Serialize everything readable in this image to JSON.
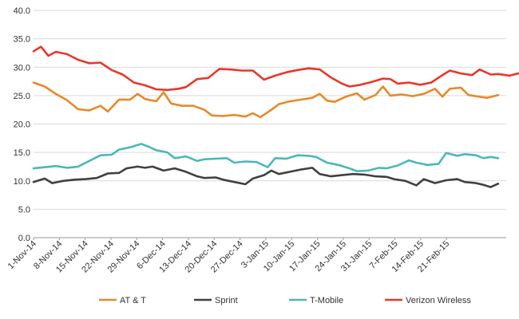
{
  "chart_data": {
    "type": "line",
    "title": "",
    "xlabel": "",
    "ylabel": "",
    "ylim": [
      0,
      40
    ],
    "y_ticks": [
      "0.0",
      "5.0",
      "10.0",
      "15.0",
      "20.0",
      "25.0",
      "30.0",
      "35.0",
      "40.0"
    ],
    "grid": "horizontal",
    "legend_position": "bottom",
    "x_start": "2014-11-01",
    "x_end": "2015-02-24",
    "x_tick_labels": [
      "1-Nov-14",
      "8-Nov-14",
      "15-Nov-14",
      "22-Nov-14",
      "29-Nov-14",
      "6-Dec-14",
      "13-Dec-14",
      "20-Dec-14",
      "27-Dec-14",
      "3-Jan-15",
      "10-Jan-15",
      "17-Jan-15",
      "24-Jan-15",
      "31-Jan-15",
      "7-Feb-15",
      "14-Feb-15",
      "21-Feb-15"
    ],
    "series": [
      {
        "name": "AT & T",
        "color": "#e8892a",
        "points": [
          [
            "2014-11-01",
            27.3
          ],
          [
            "2014-11-04",
            26.6
          ],
          [
            "2014-11-07",
            25.3
          ],
          [
            "2014-11-10",
            24.2
          ],
          [
            "2014-11-13",
            22.6
          ],
          [
            "2014-11-16",
            22.4
          ],
          [
            "2014-11-19",
            23.2
          ],
          [
            "2014-11-21",
            22.2
          ],
          [
            "2014-11-24",
            24.3
          ],
          [
            "2014-11-27",
            24.3
          ],
          [
            "2014-11-29",
            25.3
          ],
          [
            "2014-12-01",
            24.4
          ],
          [
            "2014-12-04",
            24.0
          ],
          [
            "2014-12-06",
            25.6
          ],
          [
            "2014-12-08",
            23.6
          ],
          [
            "2014-12-11",
            23.2
          ],
          [
            "2014-12-14",
            23.2
          ],
          [
            "2014-12-17",
            22.5
          ],
          [
            "2014-12-19",
            21.5
          ],
          [
            "2014-12-22",
            21.4
          ],
          [
            "2014-12-25",
            21.6
          ],
          [
            "2014-12-28",
            21.3
          ],
          [
            "2014-12-30",
            21.9
          ],
          [
            "2015-01-01",
            21.2
          ],
          [
            "2015-01-04",
            22.5
          ],
          [
            "2015-01-06",
            23.5
          ],
          [
            "2015-01-09",
            24.0
          ],
          [
            "2015-01-12",
            24.3
          ],
          [
            "2015-01-15",
            24.6
          ],
          [
            "2015-01-17",
            25.3
          ],
          [
            "2015-01-19",
            24.1
          ],
          [
            "2015-01-21",
            23.9
          ],
          [
            "2015-01-24",
            24.8
          ],
          [
            "2015-01-27",
            25.4
          ],
          [
            "2015-01-29",
            24.3
          ],
          [
            "2015-02-01",
            25.1
          ],
          [
            "2015-02-03",
            26.6
          ],
          [
            "2015-02-05",
            25.0
          ],
          [
            "2015-02-08",
            25.2
          ],
          [
            "2015-02-11",
            24.9
          ],
          [
            "2015-02-14",
            25.3
          ],
          [
            "2015-02-17",
            26.2
          ],
          [
            "2015-02-19",
            24.8
          ],
          [
            "2015-02-21",
            26.2
          ],
          [
            "2015-02-24",
            26.4
          ],
          [
            "2015-02-26",
            25.1
          ],
          [
            "2015-02-28",
            24.9
          ],
          [
            "2015-03-03",
            24.6
          ],
          [
            "2015-03-06",
            25.1
          ]
        ]
      },
      {
        "name": "Sprint",
        "color": "#404040",
        "points": [
          [
            "2014-11-01",
            9.8
          ],
          [
            "2014-11-04",
            10.4
          ],
          [
            "2014-11-06",
            9.6
          ],
          [
            "2014-11-09",
            10.0
          ],
          [
            "2014-11-12",
            10.2
          ],
          [
            "2014-11-15",
            10.3
          ],
          [
            "2014-11-18",
            10.5
          ],
          [
            "2014-11-21",
            11.3
          ],
          [
            "2014-11-24",
            11.4
          ],
          [
            "2014-11-26",
            12.2
          ],
          [
            "2014-11-29",
            12.5
          ],
          [
            "2014-12-01",
            12.3
          ],
          [
            "2014-12-03",
            12.5
          ],
          [
            "2014-12-06",
            11.8
          ],
          [
            "2014-12-09",
            12.2
          ],
          [
            "2014-12-12",
            11.6
          ],
          [
            "2014-12-15",
            10.8
          ],
          [
            "2014-12-17",
            10.5
          ],
          [
            "2014-12-20",
            10.6
          ],
          [
            "2014-12-22",
            10.2
          ],
          [
            "2014-12-25",
            9.8
          ],
          [
            "2014-12-28",
            9.4
          ],
          [
            "2014-12-30",
            10.4
          ],
          [
            "2015-01-02",
            11.0
          ],
          [
            "2015-01-04",
            11.8
          ],
          [
            "2015-01-06",
            11.2
          ],
          [
            "2015-01-09",
            11.6
          ],
          [
            "2015-01-12",
            12.0
          ],
          [
            "2015-01-15",
            12.3
          ],
          [
            "2015-01-17",
            11.2
          ],
          [
            "2015-01-20",
            10.8
          ],
          [
            "2015-01-23",
            11.0
          ],
          [
            "2015-01-26",
            11.2
          ],
          [
            "2015-01-29",
            11.1
          ],
          [
            "2015-02-01",
            10.8
          ],
          [
            "2015-02-04",
            10.7
          ],
          [
            "2015-02-06",
            10.3
          ],
          [
            "2015-02-09",
            10.0
          ],
          [
            "2015-02-12",
            9.2
          ],
          [
            "2015-02-14",
            10.3
          ],
          [
            "2015-02-17",
            9.6
          ],
          [
            "2015-02-20",
            10.1
          ],
          [
            "2015-02-23",
            10.3
          ],
          [
            "2015-02-25",
            9.8
          ],
          [
            "2015-02-28",
            9.6
          ],
          [
            "2015-03-02",
            9.3
          ],
          [
            "2015-03-04",
            8.9
          ],
          [
            "2015-03-06",
            9.5
          ]
        ]
      },
      {
        "name": "T-Mobile",
        "color": "#4bb8b8",
        "points": [
          [
            "2014-11-01",
            12.2
          ],
          [
            "2014-11-04",
            12.4
          ],
          [
            "2014-11-07",
            12.6
          ],
          [
            "2014-11-10",
            12.3
          ],
          [
            "2014-11-13",
            12.5
          ],
          [
            "2014-11-16",
            13.5
          ],
          [
            "2014-11-19",
            14.5
          ],
          [
            "2014-11-22",
            14.6
          ],
          [
            "2014-11-24",
            15.5
          ],
          [
            "2014-11-27",
            15.9
          ],
          [
            "2014-11-30",
            16.5
          ],
          [
            "2014-12-02",
            16.0
          ],
          [
            "2014-12-04",
            15.4
          ],
          [
            "2014-12-07",
            15.0
          ],
          [
            "2014-12-09",
            14.0
          ],
          [
            "2014-12-12",
            14.3
          ],
          [
            "2014-12-15",
            13.5
          ],
          [
            "2014-12-17",
            13.8
          ],
          [
            "2014-12-20",
            13.9
          ],
          [
            "2014-12-23",
            14.0
          ],
          [
            "2014-12-25",
            13.2
          ],
          [
            "2014-12-28",
            13.4
          ],
          [
            "2014-12-31",
            13.3
          ],
          [
            "2015-01-03",
            12.4
          ],
          [
            "2015-01-05",
            14.0
          ],
          [
            "2015-01-08",
            13.9
          ],
          [
            "2015-01-11",
            14.5
          ],
          [
            "2015-01-14",
            14.4
          ],
          [
            "2015-01-16",
            14.2
          ],
          [
            "2015-01-19",
            13.2
          ],
          [
            "2015-01-22",
            12.8
          ],
          [
            "2015-01-25",
            12.2
          ],
          [
            "2015-01-27",
            11.7
          ],
          [
            "2015-01-30",
            11.8
          ],
          [
            "2015-02-02",
            12.3
          ],
          [
            "2015-02-04",
            12.2
          ],
          [
            "2015-02-07",
            12.7
          ],
          [
            "2015-02-10",
            13.6
          ],
          [
            "2015-02-12",
            13.2
          ],
          [
            "2015-02-15",
            12.8
          ],
          [
            "2015-02-18",
            13.0
          ],
          [
            "2015-02-20",
            14.9
          ],
          [
            "2015-02-23",
            14.4
          ],
          [
            "2015-02-25",
            14.7
          ],
          [
            "2015-02-28",
            14.5
          ],
          [
            "2015-03-02",
            14.0
          ],
          [
            "2015-03-04",
            14.2
          ],
          [
            "2015-03-06",
            14.0
          ]
        ]
      },
      {
        "name": "Verizon Wireless",
        "color": "#e8372b",
        "points": [
          [
            "2014-11-01",
            32.8
          ],
          [
            "2014-11-03",
            33.6
          ],
          [
            "2014-11-05",
            32.0
          ],
          [
            "2014-11-07",
            32.7
          ],
          [
            "2014-11-10",
            32.3
          ],
          [
            "2014-11-13",
            31.3
          ],
          [
            "2014-11-16",
            30.7
          ],
          [
            "2014-11-19",
            30.8
          ],
          [
            "2014-11-22",
            29.5
          ],
          [
            "2014-11-25",
            28.7
          ],
          [
            "2014-11-28",
            27.3
          ],
          [
            "2014-12-01",
            26.8
          ],
          [
            "2014-12-04",
            26.1
          ],
          [
            "2014-12-07",
            26.0
          ],
          [
            "2014-12-10",
            26.2
          ],
          [
            "2014-12-12",
            26.5
          ],
          [
            "2014-12-15",
            27.9
          ],
          [
            "2014-12-18",
            28.1
          ],
          [
            "2014-12-21",
            29.7
          ],
          [
            "2014-12-24",
            29.6
          ],
          [
            "2014-12-27",
            29.4
          ],
          [
            "2014-12-30",
            29.4
          ],
          [
            "2015-01-02",
            27.8
          ],
          [
            "2015-01-05",
            28.5
          ],
          [
            "2015-01-08",
            29.1
          ],
          [
            "2015-01-11",
            29.5
          ],
          [
            "2015-01-14",
            29.8
          ],
          [
            "2015-01-17",
            29.6
          ],
          [
            "2015-01-20",
            28.2
          ],
          [
            "2015-01-23",
            27.1
          ],
          [
            "2015-01-25",
            26.6
          ],
          [
            "2015-01-28",
            26.9
          ],
          [
            "2015-01-31",
            27.4
          ],
          [
            "2015-02-03",
            28.0
          ],
          [
            "2015-02-05",
            27.9
          ],
          [
            "2015-02-07",
            27.1
          ],
          [
            "2015-02-10",
            27.3
          ],
          [
            "2015-02-13",
            26.9
          ],
          [
            "2015-02-16",
            27.3
          ],
          [
            "2015-02-19",
            28.6
          ],
          [
            "2015-02-21",
            29.4
          ],
          [
            "2015-02-24",
            28.9
          ],
          [
            "2015-02-27",
            28.6
          ],
          [
            "2015-03-01",
            29.6
          ],
          [
            "2015-03-04",
            28.7
          ],
          [
            "2015-03-06",
            28.8
          ],
          [
            "2015-03-09",
            28.5
          ],
          [
            "2015-03-12",
            29.0
          ]
        ]
      }
    ]
  }
}
